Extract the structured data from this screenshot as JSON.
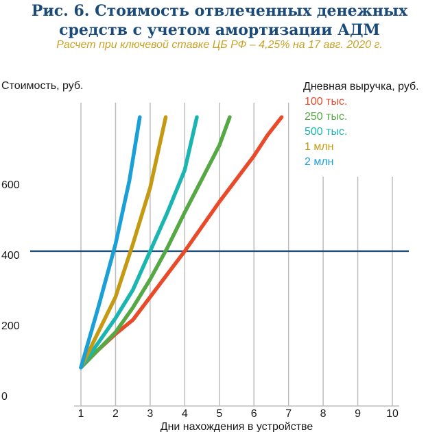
{
  "header": {
    "title": "Рис. 6. Стоимость отвлеченных денежных\nсредств с учетом амортизации АДМ",
    "subtitle": "Расчет при ключевой ставке ЦБ РФ – 4,25% на 17 авг. 2020 г."
  },
  "chart_data": {
    "type": "line",
    "ylabel": "Стоимость, руб.",
    "xlabel": "Дни нахождения в устройстве",
    "legend_title": "Дневная выручка, руб.",
    "legend_position": "top-right",
    "x_ticks": [
      "1",
      "2",
      "3",
      "4",
      "5",
      "6",
      "7",
      "8",
      "9",
      "10"
    ],
    "y_ticks": [
      "0",
      "200",
      "400",
      "600"
    ],
    "xlim": [
      0,
      10.6
    ],
    "ylim": [
      0,
      790
    ],
    "grid": "vertical",
    "reference_line": {
      "y": 410,
      "color": "#1f4e79"
    },
    "series": [
      {
        "name": "100 тыс.",
        "color": "#e84a2a",
        "points": [
          [
            1,
            80
          ],
          [
            1.5,
            130
          ],
          [
            2,
            175
          ],
          [
            2.5,
            215
          ],
          [
            3,
            280
          ],
          [
            3.5,
            345
          ],
          [
            4,
            410
          ],
          [
            4.5,
            480
          ],
          [
            5,
            550
          ],
          [
            5.5,
            615
          ],
          [
            6,
            680
          ],
          [
            6.4,
            740
          ],
          [
            6.8,
            790
          ]
        ]
      },
      {
        "name": "250 тыс.",
        "color": "#55a844",
        "points": [
          [
            1,
            80
          ],
          [
            1.5,
            130
          ],
          [
            2,
            180
          ],
          [
            2.5,
            250
          ],
          [
            3,
            330
          ],
          [
            3.5,
            420
          ],
          [
            4,
            520
          ],
          [
            4.5,
            615
          ],
          [
            5,
            710
          ],
          [
            5.3,
            790
          ]
        ]
      },
      {
        "name": "500 тыс.",
        "color": "#1ab5b0",
        "points": [
          [
            1,
            80
          ],
          [
            1.5,
            150
          ],
          [
            2,
            220
          ],
          [
            2.5,
            300
          ],
          [
            3,
            410
          ],
          [
            3.5,
            520
          ],
          [
            4,
            640
          ],
          [
            4.35,
            790
          ]
        ]
      },
      {
        "name": "1 млн",
        "color": "#c49a12",
        "points": [
          [
            1,
            80
          ],
          [
            1.5,
            180
          ],
          [
            2,
            280
          ],
          [
            2.5,
            430
          ],
          [
            3,
            590
          ],
          [
            3.45,
            790
          ]
        ]
      },
      {
        "name": "2 млн",
        "color": "#1a9fd6",
        "points": [
          [
            1,
            80
          ],
          [
            1.5,
            250
          ],
          [
            2,
            430
          ],
          [
            2.4,
            610
          ],
          [
            2.7,
            790
          ]
        ]
      }
    ]
  }
}
